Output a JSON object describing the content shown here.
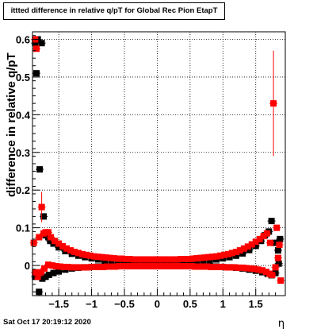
{
  "chart_data": {
    "type": "scatter",
    "title": "ittted difference in relative q/pT  for Global Rec Pion EtapT",
    "xlabel": "η",
    "ylabel": "difference in relative q/pT",
    "timestamp": "Sat Oct 17 20:19:12 2020",
    "xlim": [
      -1.9,
      1.95
    ],
    "ylim": [
      -0.08,
      0.62
    ],
    "grid": true,
    "x_ticks": [
      -1.5,
      -1,
      -0.5,
      0,
      0.5,
      1,
      1.5
    ],
    "x_tick_labels": [
      "−1.5",
      "−1",
      "−0.5",
      "0",
      "0.5",
      "1",
      "1.5"
    ],
    "y_ticks": [
      0,
      0.1,
      0.2,
      0.3,
      0.4,
      0.5,
      0.6
    ],
    "y_tick_labels": [
      "0",
      "0.1",
      "0.2",
      "0.3",
      "0.4",
      "0.5",
      "0.6"
    ],
    "series": [
      {
        "color": "#000000",
        "points": [
          {
            "x": -1.86,
            "y": 0.59
          },
          {
            "x": -1.84,
            "y": 0.51
          },
          {
            "x": -1.82,
            "y": 0.6
          },
          {
            "x": -1.79,
            "y": 0.255
          },
          {
            "x": -1.76,
            "y": 0.59
          },
          {
            "x": -1.73,
            "y": 0.13
          },
          {
            "x": -1.7,
            "y": 0.08
          },
          {
            "x": -1.66,
            "y": 0.075
          },
          {
            "x": -1.63,
            "y": 0.065
          },
          {
            "x": -1.58,
            "y": 0.058
          },
          {
            "x": -1.5,
            "y": 0.048
          },
          {
            "x": -1.4,
            "y": 0.038
          },
          {
            "x": -1.3,
            "y": 0.031
          },
          {
            "x": -1.2,
            "y": 0.026
          },
          {
            "x": -1.1,
            "y": 0.022
          },
          {
            "x": -1.0,
            "y": 0.019
          },
          {
            "x": -0.9,
            "y": 0.016
          },
          {
            "x": -0.8,
            "y": 0.014
          },
          {
            "x": -0.7,
            "y": 0.013
          },
          {
            "x": -0.6,
            "y": 0.012
          },
          {
            "x": -0.5,
            "y": 0.011
          },
          {
            "x": -0.4,
            "y": 0.01
          },
          {
            "x": -0.3,
            "y": 0.01
          },
          {
            "x": -0.2,
            "y": 0.009
          },
          {
            "x": -0.1,
            "y": 0.009
          },
          {
            "x": 0.0,
            "y": 0.009
          },
          {
            "x": 0.1,
            "y": 0.009
          },
          {
            "x": 0.2,
            "y": 0.009
          },
          {
            "x": 0.3,
            "y": 0.01
          },
          {
            "x": 0.4,
            "y": 0.01
          },
          {
            "x": 0.5,
            "y": 0.011
          },
          {
            "x": 0.6,
            "y": 0.012
          },
          {
            "x": 0.7,
            "y": 0.013
          },
          {
            "x": 0.8,
            "y": 0.014
          },
          {
            "x": 0.9,
            "y": 0.016
          },
          {
            "x": 1.0,
            "y": 0.019
          },
          {
            "x": 1.1,
            "y": 0.022
          },
          {
            "x": 1.2,
            "y": 0.026
          },
          {
            "x": 1.3,
            "y": 0.032
          },
          {
            "x": 1.4,
            "y": 0.041
          },
          {
            "x": 1.5,
            "y": 0.052
          },
          {
            "x": 1.58,
            "y": 0.065
          },
          {
            "x": 1.64,
            "y": 0.08
          },
          {
            "x": 1.7,
            "y": 0.09
          },
          {
            "x": 1.74,
            "y": 0.118
          },
          {
            "x": 1.79,
            "y": 0.06
          },
          {
            "x": 1.84,
            "y": 0.04
          },
          {
            "x": 1.87,
            "y": 0.07
          },
          {
            "x": -1.86,
            "y": -0.03
          },
          {
            "x": -1.8,
            "y": -0.07
          },
          {
            "x": -1.75,
            "y": -0.035
          },
          {
            "x": -1.7,
            "y": -0.03
          },
          {
            "x": -1.65,
            "y": -0.025
          },
          {
            "x": -1.58,
            "y": -0.02
          },
          {
            "x": -1.5,
            "y": -0.016
          },
          {
            "x": -1.4,
            "y": -0.011
          },
          {
            "x": -1.3,
            "y": -0.008
          },
          {
            "x": -1.2,
            "y": -0.006
          },
          {
            "x": -1.1,
            "y": -0.005
          },
          {
            "x": -1.0,
            "y": -0.004
          },
          {
            "x": -0.9,
            "y": -0.003
          },
          {
            "x": -0.8,
            "y": -0.002
          },
          {
            "x": -0.7,
            "y": -0.002
          },
          {
            "x": -0.6,
            "y": -0.001
          },
          {
            "x": -0.5,
            "y": 0.0
          },
          {
            "x": -0.4,
            "y": 0.001
          },
          {
            "x": -0.3,
            "y": 0.001
          },
          {
            "x": -0.2,
            "y": 0.001
          },
          {
            "x": -0.1,
            "y": 0.001
          },
          {
            "x": 0.0,
            "y": 0.001
          },
          {
            "x": 0.1,
            "y": 0.001
          },
          {
            "x": 0.2,
            "y": 0.001
          },
          {
            "x": 0.3,
            "y": 0.001
          },
          {
            "x": 0.4,
            "y": 0.0
          },
          {
            "x": 0.5,
            "y": 0.0
          },
          {
            "x": 0.6,
            "y": -0.001
          },
          {
            "x": 0.7,
            "y": -0.002
          },
          {
            "x": 0.8,
            "y": -0.002
          },
          {
            "x": 0.9,
            "y": -0.003
          },
          {
            "x": 1.0,
            "y": -0.004
          },
          {
            "x": 1.1,
            "y": -0.005
          },
          {
            "x": 1.2,
            "y": -0.006
          },
          {
            "x": 1.3,
            "y": -0.008
          },
          {
            "x": 1.4,
            "y": -0.011
          },
          {
            "x": 1.5,
            "y": -0.014
          },
          {
            "x": 1.6,
            "y": -0.018
          },
          {
            "x": 1.68,
            "y": -0.022
          },
          {
            "x": 1.74,
            "y": -0.026
          },
          {
            "x": 1.8,
            "y": -0.02
          },
          {
            "x": 1.85,
            "y": 0.005
          }
        ]
      },
      {
        "color": "#ff0000",
        "points": [
          {
            "x": -1.88,
            "y": 0.06
          },
          {
            "x": -1.86,
            "y": 0.6
          },
          {
            "x": -1.84,
            "y": 0.575
          },
          {
            "x": -1.8,
            "y": 0.075
          },
          {
            "x": -1.76,
            "y": 0.155
          },
          {
            "x": -1.73,
            "y": 0.085
          },
          {
            "x": -1.7,
            "y": 0.088
          },
          {
            "x": -1.66,
            "y": 0.088
          },
          {
            "x": -1.62,
            "y": 0.075
          },
          {
            "x": -1.56,
            "y": 0.065
          },
          {
            "x": -1.5,
            "y": 0.058
          },
          {
            "x": -1.44,
            "y": 0.051
          },
          {
            "x": -1.38,
            "y": 0.045
          },
          {
            "x": -1.32,
            "y": 0.04
          },
          {
            "x": -1.26,
            "y": 0.036
          },
          {
            "x": -1.2,
            "y": 0.033
          },
          {
            "x": -1.14,
            "y": 0.03
          },
          {
            "x": -1.08,
            "y": 0.028
          },
          {
            "x": -1.02,
            "y": 0.026
          },
          {
            "x": -0.96,
            "y": 0.024
          },
          {
            "x": -0.9,
            "y": 0.023
          },
          {
            "x": -0.84,
            "y": 0.022
          },
          {
            "x": -0.78,
            "y": 0.021
          },
          {
            "x": -0.72,
            "y": 0.02
          },
          {
            "x": -0.66,
            "y": 0.019
          },
          {
            "x": -0.6,
            "y": 0.018
          },
          {
            "x": -0.54,
            "y": 0.018
          },
          {
            "x": -0.48,
            "y": 0.017
          },
          {
            "x": -0.42,
            "y": 0.017
          },
          {
            "x": -0.36,
            "y": 0.016
          },
          {
            "x": -0.3,
            "y": 0.016
          },
          {
            "x": -0.24,
            "y": 0.016
          },
          {
            "x": -0.18,
            "y": 0.016
          },
          {
            "x": -0.12,
            "y": 0.016
          },
          {
            "x": -0.06,
            "y": 0.016
          },
          {
            "x": 0.0,
            "y": 0.016
          },
          {
            "x": 0.06,
            "y": 0.016
          },
          {
            "x": 0.12,
            "y": 0.016
          },
          {
            "x": 0.18,
            "y": 0.016
          },
          {
            "x": 0.24,
            "y": 0.016
          },
          {
            "x": 0.3,
            "y": 0.016
          },
          {
            "x": 0.36,
            "y": 0.017
          },
          {
            "x": 0.42,
            "y": 0.017
          },
          {
            "x": 0.48,
            "y": 0.017
          },
          {
            "x": 0.54,
            "y": 0.018
          },
          {
            "x": 0.6,
            "y": 0.019
          },
          {
            "x": 0.66,
            "y": 0.02
          },
          {
            "x": 0.72,
            "y": 0.021
          },
          {
            "x": 0.78,
            "y": 0.022
          },
          {
            "x": 0.84,
            "y": 0.023
          },
          {
            "x": 0.9,
            "y": 0.024
          },
          {
            "x": 0.96,
            "y": 0.026
          },
          {
            "x": 1.02,
            "y": 0.028
          },
          {
            "x": 1.08,
            "y": 0.03
          },
          {
            "x": 1.14,
            "y": 0.033
          },
          {
            "x": 1.2,
            "y": 0.036
          },
          {
            "x": 1.26,
            "y": 0.04
          },
          {
            "x": 1.32,
            "y": 0.045
          },
          {
            "x": 1.38,
            "y": 0.05
          },
          {
            "x": 1.44,
            "y": 0.056
          },
          {
            "x": 1.5,
            "y": 0.063
          },
          {
            "x": 1.56,
            "y": 0.07
          },
          {
            "x": 1.62,
            "y": 0.078
          },
          {
            "x": 1.67,
            "y": 0.085
          },
          {
            "x": 1.72,
            "y": 0.06
          },
          {
            "x": 1.77,
            "y": 0.43
          },
          {
            "x": 1.82,
            "y": 0.1
          },
          {
            "x": 1.86,
            "y": 0.055
          },
          {
            "x": -1.86,
            "y": -0.018
          },
          {
            "x": -1.82,
            "y": -0.03
          },
          {
            "x": -1.77,
            "y": -0.018
          },
          {
            "x": -1.72,
            "y": -0.008
          },
          {
            "x": -1.66,
            "y": 0.002
          },
          {
            "x": -1.6,
            "y": 0.0
          },
          {
            "x": -1.54,
            "y": -0.002
          },
          {
            "x": -1.48,
            "y": -0.003
          },
          {
            "x": -1.42,
            "y": -0.004
          },
          {
            "x": -1.36,
            "y": -0.004
          },
          {
            "x": -1.3,
            "y": -0.005
          },
          {
            "x": -1.24,
            "y": -0.005
          },
          {
            "x": -1.18,
            "y": -0.005
          },
          {
            "x": -1.12,
            "y": -0.005
          },
          {
            "x": -1.06,
            "y": -0.005
          },
          {
            "x": -1.0,
            "y": -0.004
          },
          {
            "x": -0.94,
            "y": -0.004
          },
          {
            "x": -0.88,
            "y": -0.004
          },
          {
            "x": -0.82,
            "y": -0.004
          },
          {
            "x": -0.76,
            "y": -0.003
          },
          {
            "x": -0.7,
            "y": -0.003
          },
          {
            "x": -0.64,
            "y": -0.003
          },
          {
            "x": -0.58,
            "y": -0.002
          },
          {
            "x": -0.52,
            "y": -0.002
          },
          {
            "x": -0.46,
            "y": -0.002
          },
          {
            "x": -0.4,
            "y": -0.002
          },
          {
            "x": -0.34,
            "y": -0.002
          },
          {
            "x": -0.28,
            "y": -0.002
          },
          {
            "x": -0.22,
            "y": -0.002
          },
          {
            "x": -0.16,
            "y": -0.002
          },
          {
            "x": -0.1,
            "y": -0.002
          },
          {
            "x": -0.04,
            "y": -0.002
          },
          {
            "x": 0.04,
            "y": -0.002
          },
          {
            "x": 0.1,
            "y": -0.002
          },
          {
            "x": 0.16,
            "y": -0.002
          },
          {
            "x": 0.22,
            "y": -0.002
          },
          {
            "x": 0.28,
            "y": -0.002
          },
          {
            "x": 0.34,
            "y": -0.002
          },
          {
            "x": 0.4,
            "y": -0.002
          },
          {
            "x": 0.46,
            "y": -0.002
          },
          {
            "x": 0.52,
            "y": -0.002
          },
          {
            "x": 0.58,
            "y": -0.003
          },
          {
            "x": 0.64,
            "y": -0.003
          },
          {
            "x": 0.7,
            "y": -0.003
          },
          {
            "x": 0.76,
            "y": -0.003
          },
          {
            "x": 0.82,
            "y": -0.004
          },
          {
            "x": 0.88,
            "y": -0.004
          },
          {
            "x": 0.94,
            "y": -0.004
          },
          {
            "x": 1.0,
            "y": -0.004
          },
          {
            "x": 1.06,
            "y": -0.005
          },
          {
            "x": 1.12,
            "y": -0.005
          },
          {
            "x": 1.18,
            "y": -0.005
          },
          {
            "x": 1.24,
            "y": -0.006
          },
          {
            "x": 1.3,
            "y": -0.006
          },
          {
            "x": 1.36,
            "y": -0.007
          },
          {
            "x": 1.42,
            "y": -0.008
          },
          {
            "x": 1.48,
            "y": -0.009
          },
          {
            "x": 1.54,
            "y": -0.011
          },
          {
            "x": 1.6,
            "y": -0.013
          },
          {
            "x": 1.66,
            "y": -0.017
          },
          {
            "x": 1.71,
            "y": -0.022
          },
          {
            "x": 1.75,
            "y": -0.025
          },
          {
            "x": 1.8,
            "y": -0.005
          },
          {
            "x": 1.84,
            "y": 0.02
          },
          {
            "x": 1.88,
            "y": -0.04
          }
        ],
        "error_bars": [
          {
            "x": -1.76,
            "y": 0.155,
            "err": 0.04
          },
          {
            "x": 1.77,
            "y": 0.43,
            "err": 0.14
          }
        ]
      }
    ]
  }
}
